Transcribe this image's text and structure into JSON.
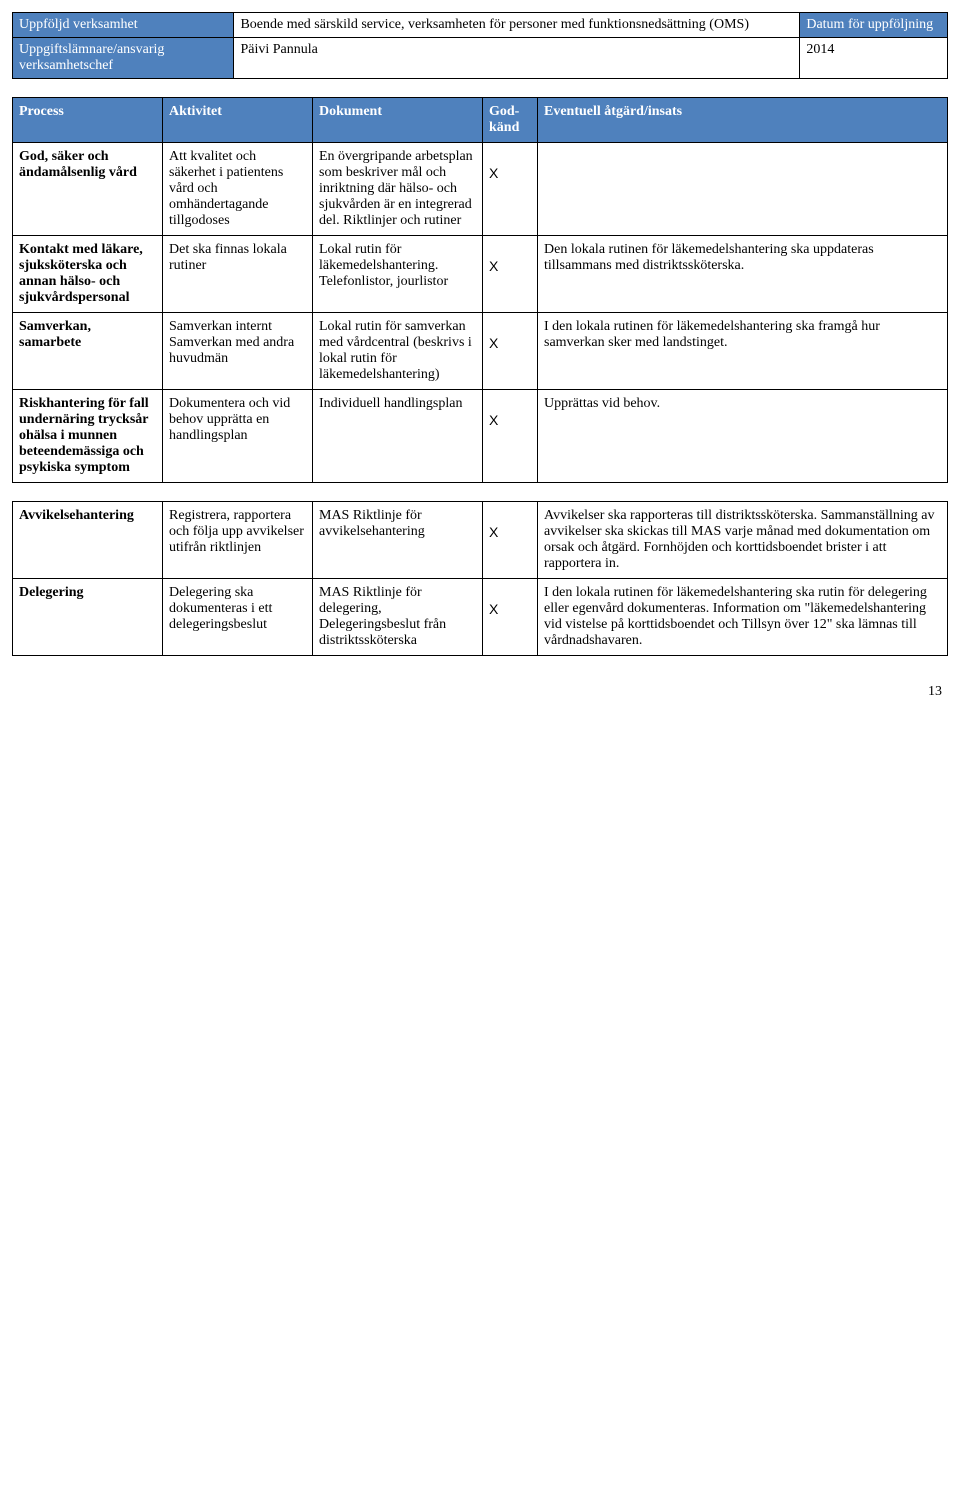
{
  "header": {
    "labels": {
      "uppfoljd": "Uppföljd verksamhet",
      "uppgiftslamnare": "Uppgiftslämnare/ansvarig verksamhetschef",
      "datum": "Datum för uppföljning"
    },
    "values": {
      "verksamhet": "Boende med särskild service, verksamheten för personer med funktionsnedsättning (OMS)",
      "chef": "Päivi Pannula",
      "year": "2014"
    }
  },
  "columns": {
    "process": "Process",
    "activity": "Aktivitet",
    "document": "Dokument",
    "godk": "God-känd",
    "action": "Eventuell åtgärd/insats"
  },
  "rows": [
    {
      "process": "God, säker och ändamålsenlig vård",
      "activity": "Att kvalitet och säkerhet i patientens vård och omhändertagande tillgodoses",
      "document": "En övergripande arbetsplan som beskriver mål och inriktning där hälso- och sjukvården är en integrerad del. Riktlinjer och rutiner",
      "godk": "X",
      "action": ""
    },
    {
      "process": "Kontakt med läkare, sjuksköterska och annan hälso- och sjukvårdspersonal",
      "activity": "Det ska finnas lokala rutiner",
      "document": "Lokal rutin för läkemedelshantering. Telefonlistor, jourlistor",
      "godk": "X",
      "action": "Den lokala rutinen för läkemedelshantering ska uppdateras tillsammans med distriktssköterska."
    },
    {
      "process": "Samverkan, samarbete",
      "activity": "Samverkan internt Samverkan med andra huvudmän",
      "document": "Lokal rutin för samverkan med vårdcentral (beskrivs i lokal rutin för läkemedelshantering)",
      "godk": "X",
      "action": "I den lokala rutinen för läkemedelshantering ska framgå hur samverkan sker med landstinget."
    },
    {
      "process": "Riskhantering för fall undernäring trycksår ohälsa i munnen beteendemässiga och psykiska symptom",
      "activity": "Dokumentera och vid behov upprätta en handlingsplan",
      "document": "Individuell handlingsplan",
      "godk": "X",
      "action": "Upprättas vid behov."
    }
  ],
  "rows2": [
    {
      "process": "Avvikelsehantering",
      "activity": "Registrera, rapportera och följa upp avvikelser utifrån riktlinjen",
      "document": " MAS Riktlinje för avvikelsehantering",
      "godk": "X",
      "action": "Avvikelser ska rapporteras till distriktssköterska. Sammanställning av avvikelser ska skickas till MAS varje månad med dokumentation om orsak och åtgärd. Fornhöjden och korttidsboendet brister i att rapportera in."
    },
    {
      "process": "Delegering",
      "activity": "Delegering ska dokumenteras i ett delegeringsbeslut",
      "document": "MAS Riktlinje för delegering, Delegeringsbeslut från distriktssköterska",
      "godk": "X",
      "action": "I den lokala rutinen för läkemedelshantering ska rutin för delegering eller egenvård dokumenteras. Information om \"läkemedelshantering vid vistelse på korttidsboendet och Tillsyn över 12\" ska lämnas till vårdnadshavaren."
    }
  ],
  "pageNumber": "13"
}
